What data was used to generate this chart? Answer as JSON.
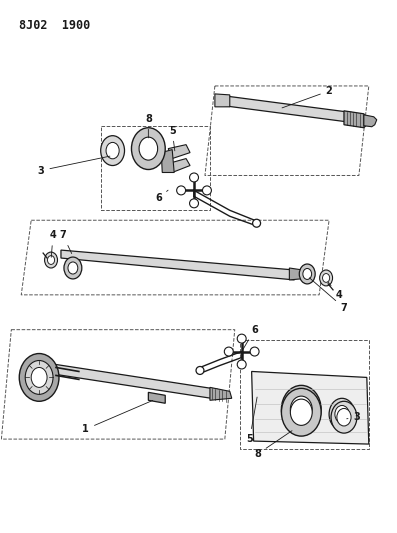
{
  "title": "8J02  1900",
  "bg_color": "#ffffff",
  "lc": "#1a1a1a",
  "fig_width": 3.97,
  "fig_height": 5.33,
  "dpi": 100,
  "gray1": "#c8c8c8",
  "gray2": "#a8a8a8",
  "gray3": "#888888",
  "gray4": "#d8d8d8",
  "dash_color": "#555555"
}
